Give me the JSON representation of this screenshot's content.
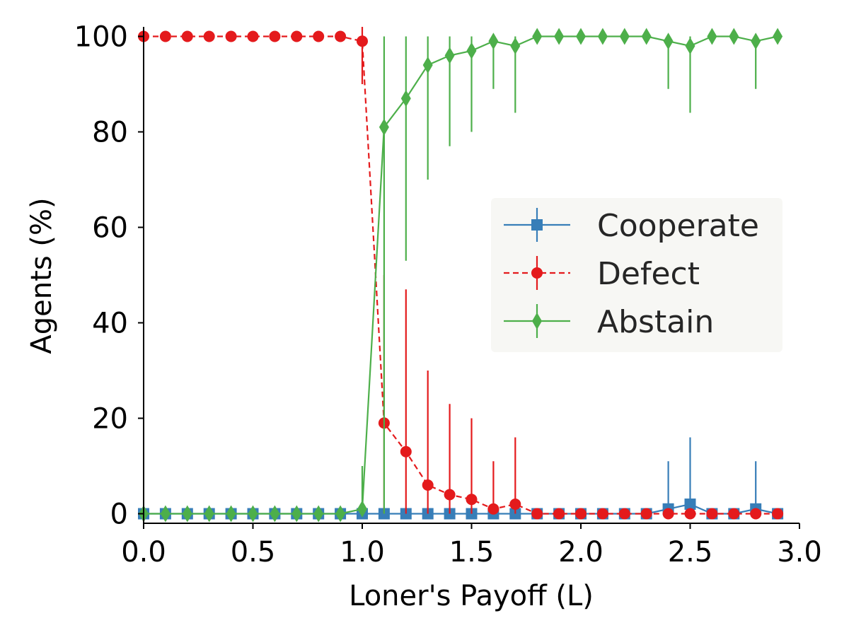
{
  "chart_data": {
    "type": "line",
    "title": "",
    "xlabel": "Loner's Payoff (L)",
    "ylabel": "Agents (%)",
    "xlim": [
      0.0,
      3.0
    ],
    "ylim": [
      -2,
      102
    ],
    "xticks": [
      0.0,
      0.5,
      1.0,
      1.5,
      2.0,
      2.5,
      3.0
    ],
    "xtick_labels": [
      "0.0",
      "0.5",
      "1.0",
      "1.5",
      "2.0",
      "2.5",
      "3.0"
    ],
    "yticks": [
      0,
      20,
      40,
      60,
      80,
      100
    ],
    "ytick_labels": [
      "0",
      "20",
      "40",
      "60",
      "80",
      "100"
    ],
    "grid": false,
    "legend_position": "center-right",
    "x": [
      0.0,
      0.1,
      0.2,
      0.3,
      0.4,
      0.5,
      0.6,
      0.7,
      0.8,
      0.9,
      1.0,
      1.1,
      1.2,
      1.3,
      1.4,
      1.5,
      1.6,
      1.7,
      1.8,
      1.9,
      2.0,
      2.1,
      2.2,
      2.3,
      2.4,
      2.5,
      2.6,
      2.7,
      2.8,
      2.9
    ],
    "series": [
      {
        "name": "Cooperate",
        "color": "#377eb8",
        "marker": "square",
        "linestyle": "solid",
        "values": [
          0,
          0,
          0,
          0,
          0,
          0,
          0,
          0,
          0,
          0,
          0,
          0,
          0,
          0,
          0,
          0,
          0,
          0,
          0,
          0,
          0,
          0,
          0,
          0,
          1,
          2,
          0,
          0,
          1,
          0
        ],
        "error_lower": [
          0,
          0,
          0,
          0,
          0,
          0,
          0,
          0,
          0,
          0,
          0,
          0,
          0,
          0,
          0,
          0,
          0,
          0,
          0,
          0,
          0,
          0,
          0,
          0,
          1,
          2,
          0,
          0,
          1,
          0
        ],
        "error_upper": [
          0,
          0,
          0,
          0,
          0,
          0,
          0,
          0,
          0,
          0,
          0,
          0,
          0,
          0,
          0,
          0,
          0,
          0,
          0,
          0,
          0,
          0,
          0,
          0,
          10,
          14,
          0,
          0,
          10,
          0
        ]
      },
      {
        "name": "Defect",
        "color": "#e41a1c",
        "marker": "circle",
        "linestyle": "dashed",
        "values": [
          100,
          100,
          100,
          100,
          100,
          100,
          100,
          100,
          100,
          100,
          99,
          19,
          13,
          6,
          4,
          3,
          1,
          2,
          0,
          0,
          0,
          0,
          0,
          0,
          0,
          0,
          0,
          0,
          0,
          0
        ],
        "error_lower": [
          0,
          0,
          0,
          0,
          0,
          0,
          0,
          0,
          0,
          0,
          9,
          19,
          13,
          6,
          4,
          3,
          1,
          2,
          0,
          0,
          0,
          0,
          0,
          0,
          0,
          0,
          0,
          0,
          0,
          0
        ],
        "error_upper": [
          0,
          0,
          0,
          0,
          0,
          0,
          0,
          0,
          0,
          0,
          3,
          31,
          34,
          24,
          19,
          17,
          10,
          14,
          0,
          0,
          0,
          0,
          0,
          0,
          0,
          0,
          0,
          0,
          0,
          0
        ]
      },
      {
        "name": "Abstain",
        "color": "#4daf4a",
        "marker": "diamond",
        "linestyle": "solid",
        "values": [
          0,
          0,
          0,
          0,
          0,
          0,
          0,
          0,
          0,
          0,
          1,
          81,
          87,
          94,
          96,
          97,
          99,
          98,
          100,
          100,
          100,
          100,
          100,
          100,
          99,
          98,
          100,
          100,
          99,
          100
        ],
        "error_lower": [
          0,
          0,
          0,
          0,
          0,
          0,
          0,
          0,
          0,
          0,
          1,
          81,
          34,
          24,
          19,
          17,
          10,
          14,
          0,
          0,
          0,
          0,
          0,
          0,
          10,
          14,
          0,
          0,
          10,
          0
        ],
        "error_upper": [
          0,
          0,
          0,
          0,
          0,
          0,
          0,
          0,
          0,
          0,
          9,
          19,
          13,
          6,
          4,
          3,
          1,
          2,
          0,
          0,
          0,
          0,
          0,
          0,
          1,
          2,
          0,
          0,
          1,
          0
        ]
      }
    ]
  }
}
